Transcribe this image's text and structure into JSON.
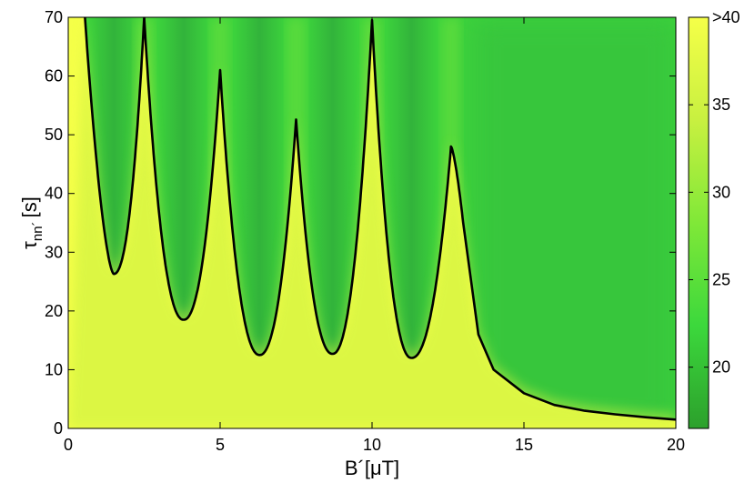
{
  "chart_data": {
    "type": "heatmap",
    "title": "",
    "xlabel": "B´[μT]",
    "ylabel_main": "τ",
    "ylabel_sub": "nn´",
    "ylabel_unit": "[s]",
    "xlim": [
      0,
      20
    ],
    "ylim": [
      0,
      70
    ],
    "x_ticks": [
      "0",
      "5",
      "10",
      "15",
      "20"
    ],
    "y_ticks": [
      "0",
      "10",
      "20",
      "30",
      "40",
      "50",
      "60",
      "70"
    ],
    "colorbar": {
      "range": [
        16.5,
        40
      ],
      "ticks": [
        "20",
        "25",
        "30",
        "35",
        ">40"
      ],
      "tick_values": [
        20,
        25,
        30,
        35,
        40
      ],
      "colors": [
        "#2ca02c",
        "#3cd83c",
        "#80e838",
        "#c8f040",
        "#f5ff48"
      ]
    },
    "contour": {
      "description_units": "x in μT, y in s",
      "minima_x": [
        1.5,
        3.8,
        6.3,
        8.7,
        11.3
      ],
      "minima_y": [
        26.3,
        18.5,
        12.5,
        12.7,
        12.0
      ],
      "peak_x": [
        2.5,
        5.0,
        7.5,
        10.0,
        12.6
      ],
      "peak_y": [
        70.0,
        61.0,
        52.6,
        69.5,
        48.0
      ],
      "tail_points": [
        [
          13.0,
          35.0
        ],
        [
          13.5,
          16.0
        ],
        [
          14.0,
          10.0
        ],
        [
          15.0,
          6.0
        ],
        [
          16.0,
          4.0
        ],
        [
          17.0,
          3.0
        ],
        [
          18.0,
          2.4
        ],
        [
          19.0,
          1.9
        ],
        [
          20.0,
          1.5
        ]
      ],
      "start_x": 0.55
    }
  }
}
